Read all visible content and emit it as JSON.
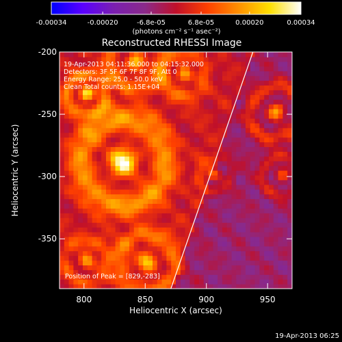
{
  "colorbar": {
    "tick_labels": [
      "-0.00034",
      "-0.00020",
      "-6.8e-05",
      "6.8e-05",
      "0.00020",
      "0.00034"
    ],
    "tick_values": [
      -0.00034,
      -0.0002,
      -6.8e-05,
      6.8e-05,
      0.0002,
      0.00034
    ],
    "range": [
      -0.00034,
      0.00034
    ],
    "units_label": "(photons cm⁻² s⁻¹ asec⁻²)",
    "colors": [
      "#0000ff",
      "#5a00ff",
      "#7a1fb0",
      "#8a2a8a",
      "#c0102a",
      "#ff4000",
      "#ff9000",
      "#ffe000",
      "#ffffff"
    ]
  },
  "chart_data": {
    "type": "heatmap",
    "title": "Reconstructed RHESSI Image",
    "xlabel": "Heliocentric X (arcsec)",
    "ylabel": "Heliocentric Y (arcsec)",
    "xlim": [
      780,
      970
    ],
    "ylim": [
      -390,
      -200
    ],
    "x_ticks": [
      800,
      850,
      900,
      950
    ],
    "y_ticks": [
      -200,
      -250,
      -300,
      -350
    ],
    "x_tick_labels": [
      "800",
      "850",
      "900",
      "950"
    ],
    "y_tick_labels": [
      "-200",
      "-250",
      "-300",
      "-350"
    ],
    "annotations": [
      "19-Apr-2013 04:11:36.000 to 04:15:32.000",
      "Detectors: 3F 5F 6F 7F 8F 9F, Att 0",
      "Energy Range: 25.0 - 50.0 keV",
      "Clean    Total counts: 1.15E+04"
    ],
    "peak_label": "Position of Peak = [829,-283]",
    "peak_position": [
      829,
      -283
    ],
    "limb_line": [
      [
        871,
        -390
      ],
      [
        938,
        -200
      ]
    ],
    "hot_spots": [
      {
        "x": 830,
        "y": -290,
        "r": 30,
        "v": 0.00034
      },
      {
        "x": 800,
        "y": -235,
        "r": 14,
        "v": 0.00028
      },
      {
        "x": 840,
        "y": -210,
        "r": 18,
        "v": 0.00022
      },
      {
        "x": 880,
        "y": -220,
        "r": 15,
        "v": 0.0002
      },
      {
        "x": 955,
        "y": -250,
        "r": 18,
        "v": 0.00024
      },
      {
        "x": 960,
        "y": -300,
        "r": 14,
        "v": 0.00016
      },
      {
        "x": 850,
        "y": -370,
        "r": 20,
        "v": 0.00024
      },
      {
        "x": 800,
        "y": -370,
        "r": 15,
        "v": 0.00018
      },
      {
        "x": 905,
        "y": -300,
        "r": 12,
        "v": 0.00014
      }
    ],
    "grid": false
  },
  "footer": {
    "timestamp": "19-Apr-2013 06:25"
  }
}
